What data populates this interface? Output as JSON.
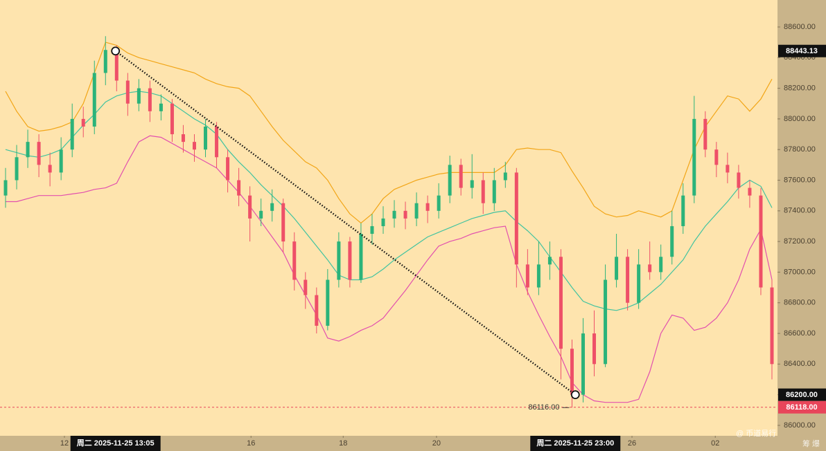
{
  "chart_data": {
    "type": "candlestick",
    "open": [
      87500,
      87600,
      87750,
      87850,
      87700,
      87650,
      87800,
      88000,
      87950,
      88300,
      88450,
      88250,
      88100,
      88200,
      88050,
      88100,
      87900,
      87850,
      87800,
      87950,
      87750,
      87600,
      87500,
      87350,
      87400,
      87450,
      87200,
      86950,
      86850,
      86650,
      86950,
      87200,
      86950,
      87250,
      87300,
      87350,
      87400,
      87350,
      87450,
      87400,
      87500,
      87700,
      87550,
      87600,
      87450,
      87600,
      87650,
      87050,
      86900,
      87050,
      87100,
      86500,
      86200,
      86600,
      86400,
      86950,
      87100,
      86800,
      87050,
      87000,
      87100,
      87300,
      87500,
      88000,
      87800,
      87700,
      87650,
      87550,
      87500,
      86900
    ],
    "high": [
      87680,
      87830,
      87930,
      87900,
      87780,
      87880,
      88100,
      88080,
      88380,
      88540,
      88480,
      88300,
      88260,
      88250,
      88160,
      88130,
      87960,
      87900,
      88000,
      87980,
      87800,
      87680,
      87560,
      87480,
      87540,
      87480,
      87260,
      87000,
      86900,
      87020,
      87260,
      87230,
      87320,
      87380,
      87430,
      87470,
      87460,
      87520,
      87500,
      87580,
      87760,
      87740,
      87770,
      87650,
      87680,
      87720,
      87680,
      87150,
      87200,
      87200,
      87150,
      86560,
      86700,
      86750,
      87050,
      87250,
      87150,
      87150,
      87200,
      87180,
      87400,
      87580,
      88150,
      88050,
      87850,
      87780,
      87700,
      87600,
      87550,
      86950
    ],
    "low": [
      87420,
      87540,
      87680,
      87620,
      87560,
      87600,
      87750,
      87880,
      87900,
      88220,
      88180,
      88020,
      88050,
      87980,
      87990,
      87850,
      87780,
      87720,
      87750,
      87680,
      87520,
      87430,
      87200,
      87300,
      87330,
      87130,
      86880,
      86760,
      86600,
      86620,
      86900,
      86900,
      86930,
      87180,
      87250,
      87290,
      87280,
      87300,
      87320,
      87350,
      87450,
      87500,
      87480,
      87380,
      87400,
      87550,
      86900,
      86850,
      86850,
      86950,
      86300,
      86116,
      86150,
      86320,
      86380,
      86900,
      86750,
      86760,
      86950,
      86950,
      87050,
      87250,
      87450,
      87750,
      87620,
      87580,
      87480,
      87420,
      86850,
      86300
    ],
    "close": [
      87600,
      87750,
      87850,
      87700,
      87650,
      87800,
      88000,
      87950,
      88300,
      88450,
      88250,
      88100,
      88200,
      88050,
      88100,
      87900,
      87850,
      87800,
      87950,
      87750,
      87600,
      87500,
      87350,
      87400,
      87450,
      87200,
      86950,
      86850,
      86650,
      86950,
      87200,
      86950,
      87250,
      87300,
      87350,
      87400,
      87350,
      87450,
      87400,
      87500,
      87700,
      87550,
      87600,
      87450,
      87600,
      87650,
      87050,
      86900,
      87050,
      87100,
      86500,
      86200,
      86600,
      86400,
      86950,
      87100,
      86800,
      87050,
      87000,
      87100,
      87300,
      87500,
      88000,
      87800,
      87700,
      87650,
      87550,
      87500,
      86900,
      86400
    ],
    "up_color": "#2bb37a",
    "down_color": "#ee5068",
    "series": [
      {
        "color": "#f2a516",
        "values": [
          88180,
          88050,
          87950,
          87920,
          87930,
          87950,
          87980,
          88100,
          88300,
          88500,
          88480,
          88430,
          88400,
          88380,
          88360,
          88340,
          88320,
          88300,
          88260,
          88230,
          88210,
          88200,
          88150,
          88050,
          87950,
          87860,
          87790,
          87720,
          87680,
          87600,
          87480,
          87380,
          87320,
          87380,
          87480,
          87540,
          87570,
          87600,
          87620,
          87640,
          87650,
          87650,
          87650,
          87650,
          87650,
          87700,
          87800,
          87810,
          87800,
          87800,
          87780,
          87660,
          87550,
          87430,
          87380,
          87360,
          87370,
          87400,
          87380,
          87360,
          87400,
          87600,
          87800,
          87950,
          88050,
          88150,
          88130,
          88050,
          88130,
          88260
        ]
      },
      {
        "color": "#3fc3a0",
        "values": [
          87800,
          87780,
          87760,
          87750,
          87770,
          87800,
          87880,
          87960,
          88030,
          88110,
          88150,
          88170,
          88180,
          88170,
          88150,
          88100,
          88050,
          88000,
          87960,
          87900,
          87800,
          87720,
          87650,
          87570,
          87500,
          87430,
          87350,
          87260,
          87170,
          87080,
          86980,
          86950,
          86950,
          86970,
          87020,
          87080,
          87130,
          87180,
          87230,
          87260,
          87290,
          87320,
          87350,
          87370,
          87390,
          87400,
          87330,
          87270,
          87200,
          87100,
          87000,
          86900,
          86810,
          86780,
          86760,
          86750,
          86770,
          86800,
          86860,
          86920,
          87000,
          87080,
          87200,
          87300,
          87380,
          87460,
          87550,
          87600,
          87560,
          87420
        ]
      },
      {
        "color": "#e24fae",
        "values": [
          87460,
          87460,
          87480,
          87500,
          87500,
          87500,
          87510,
          87520,
          87540,
          87550,
          87580,
          87720,
          87850,
          87890,
          87880,
          87840,
          87800,
          87760,
          87720,
          87680,
          87600,
          87520,
          87430,
          87330,
          87230,
          87130,
          86980,
          86850,
          86720,
          86570,
          86550,
          86580,
          86620,
          86650,
          86700,
          86790,
          86880,
          86980,
          87080,
          87170,
          87200,
          87220,
          87250,
          87270,
          87290,
          87300,
          87050,
          86870,
          86720,
          86580,
          86450,
          86280,
          86200,
          86160,
          86150,
          86150,
          86150,
          86170,
          86350,
          86600,
          86720,
          86700,
          86620,
          86640,
          86700,
          86800,
          86950,
          87150,
          87280,
          86950
        ]
      }
    ],
    "ylim": [
      85932,
      88776
    ],
    "yticks": [
      {
        "value": 86000,
        "label": "86000.00"
      },
      {
        "value": 86200,
        "label": "86200.00"
      },
      {
        "value": 86400,
        "label": "86400.00"
      },
      {
        "value": 86600,
        "label": "86600.00"
      },
      {
        "value": 86800,
        "label": "86800.00"
      },
      {
        "value": 87000,
        "label": "87000.00"
      },
      {
        "value": 87200,
        "label": "87200.00"
      },
      {
        "value": 87400,
        "label": "87400.00"
      },
      {
        "value": 87600,
        "label": "87600.00"
      },
      {
        "value": 87800,
        "label": "87800.00"
      },
      {
        "value": 88000,
        "label": "88000.00"
      },
      {
        "value": 88200,
        "label": "88200.00"
      },
      {
        "value": 88400,
        "label": "88400.00"
      },
      {
        "value": 88600,
        "label": "88600.00"
      }
    ],
    "xlim": [
      -0.5,
      69.5
    ],
    "xticks": [
      {
        "value": 5.3,
        "label": "12"
      },
      {
        "value": 22.1,
        "label": "16"
      },
      {
        "value": 30.4,
        "label": "18"
      },
      {
        "value": 38.8,
        "label": "20"
      },
      {
        "value": 56.4,
        "label": "26"
      },
      {
        "value": 63.9,
        "label": "02"
      }
    ],
    "grid": false,
    "trend_line": {
      "x": [
        9.9,
        51.3
      ],
      "values": [
        88443.13,
        86200
      ]
    },
    "price_line": {
      "value": 86118,
      "color": "#e8455a"
    },
    "low_marker": {
      "x": 51,
      "value": 86116,
      "label": "86116.00"
    },
    "crosshair_labels": [
      {
        "x": 9.9,
        "label": "周二 2025-11-25 13:05"
      },
      {
        "x": 51.3,
        "label": "周二 2025-11-25 23:00"
      }
    ],
    "price_labels": [
      {
        "value": 88443.13,
        "label": "88443.13",
        "color": "#111111"
      },
      {
        "value": 86200,
        "label": "86200.00",
        "color": "#111111"
      },
      {
        "value": 86118,
        "label": "86118.00",
        "color": "#e8455a"
      }
    ],
    "watermark": "@ 币道易行",
    "corner_text": "筹 爆"
  }
}
